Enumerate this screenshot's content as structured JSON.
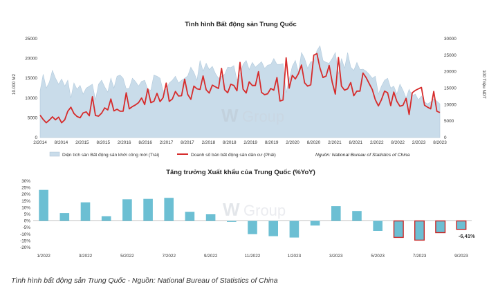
{
  "chart_data": [
    {
      "type": "area+line",
      "title": "Tình hình Bất động sản Trung Quốc",
      "ylabel_left": "10.000 M2",
      "ylabel_right": "100 Triệu NDT",
      "ylim_left": [
        0,
        25000
      ],
      "ylim_right": [
        0,
        30000
      ],
      "y_ticks_left": [
        "0",
        "5000",
        "10000",
        "15000",
        "20000",
        "25000"
      ],
      "y_ticks_right": [
        "0",
        "5000",
        "10000",
        "15000",
        "20000",
        "25000",
        "30000"
      ],
      "x_ticks": [
        "2/2014",
        "8/2014",
        "2/2015",
        "8/2015",
        "2/2016",
        "8/2016",
        "2/2017",
        "8/2017",
        "2/2018",
        "8/2018",
        "2/2019",
        "8/2019",
        "2/2020",
        "8/2020",
        "2/2021",
        "8/2021",
        "2/2022",
        "8/2022",
        "2/2023",
        "8/2023"
      ],
      "series": [
        {
          "name": "Diện tích sàn Bất động sản khởi công mới (Trái)",
          "axis": "left",
          "color": "#c9dcea",
          "values": [
            11800,
            16000,
            12500,
            14000,
            17000,
            15000,
            13500,
            14800,
            13000,
            14500,
            10000,
            13800,
            12200,
            13200,
            11000,
            12500,
            13000,
            13500,
            9500,
            13500,
            14500,
            12800,
            11500,
            15000,
            12500,
            15500,
            15800,
            15000,
            12300,
            12500,
            15000,
            14200,
            13000,
            14200,
            14500,
            12200,
            12000,
            15800,
            15500,
            15000,
            11800,
            12200,
            13800,
            14500,
            15500,
            13800,
            14500,
            15000,
            15600,
            17800,
            16500,
            14500,
            19500,
            16800,
            18800,
            17200,
            18000,
            16200,
            15000,
            15500,
            16000,
            17800,
            17700,
            18200,
            14500,
            16000,
            18500,
            19500,
            17200,
            19000,
            17800,
            18500,
            19200,
            17500,
            18300,
            18500,
            20000,
            18500,
            18500,
            18700,
            11300,
            14800,
            18000,
            19500,
            16500,
            21500,
            20000,
            17500,
            19200,
            19200,
            22000,
            23200,
            19500,
            19000,
            18800,
            20000,
            21500,
            16000,
            20000,
            17500,
            21500,
            17800,
            17000,
            19000,
            17200,
            17300,
            16800,
            16000,
            15000,
            15500,
            11000,
            13000,
            14500,
            15000,
            12500,
            13000,
            11000,
            13500,
            12000,
            10000,
            12200,
            10500,
            11000,
            9500,
            10500,
            9000,
            8500,
            9000,
            9800,
            9200,
            8500
          ]
        },
        {
          "name": "Doanh số bán bất động sản dân cư (Phải)",
          "axis": "right",
          "color": "#d62b2b",
          "values": [
            6800,
            5500,
            4500,
            5300,
            6300,
            5400,
            6200,
            4500,
            5400,
            8000,
            9200,
            7300,
            6400,
            6000,
            7500,
            7800,
            6600,
            12400,
            6700,
            6500,
            7400,
            9000,
            8400,
            11700,
            8100,
            8600,
            8000,
            8000,
            13600,
            8700,
            9400,
            9900,
            10600,
            12000,
            10000,
            14800,
            10600,
            11000,
            13400,
            10900,
            12100,
            16500,
            11000,
            11700,
            14000,
            12600,
            12700,
            17700,
            13100,
            11600,
            15600,
            14800,
            14600,
            18700,
            14500,
            13500,
            15900,
            15400,
            14900,
            21000,
            14500,
            13600,
            16200,
            15800,
            14200,
            22800,
            14700,
            13500,
            16900,
            15800,
            15800,
            20000,
            13700,
            13000,
            13300,
            14900,
            14400,
            18200,
            11100,
            11400,
            24200,
            15000,
            18900,
            17800,
            19400,
            22000,
            16600,
            15600,
            16000,
            25000,
            25500,
            21100,
            18200,
            18700,
            21900,
            16700,
            13200,
            24300,
            15600,
            14400,
            14800,
            16700,
            12700,
            14100,
            14100,
            19600,
            18200,
            16400,
            14600,
            11500,
            9600,
            11500,
            14100,
            13600,
            9700,
            13800,
            11000,
            9500,
            9800,
            11900,
            7000,
            13600,
            14300,
            14800,
            15200,
            9800,
            9200,
            8700,
            14000,
            8000,
            7600
          ]
        }
      ],
      "legend_left": "Diện tích sàn Bất động sản khởi công mới (Trái)",
      "legend_right": "Doanh số bán bất động sản dân cư (Phải)",
      "source": "Nguồn: National Bureau of Statistics of China"
    },
    {
      "type": "bar",
      "title": "Tăng trưởng Xuất khẩu của Trung Quốc (%YoY)",
      "categories": [
        "1/2022",
        "2/2022",
        "3/2022",
        "4/2022",
        "5/2022",
        "6/2022",
        "7/2022",
        "8/2022",
        "9/2022",
        "10/2022",
        "11/2022",
        "12/2022",
        "1/2023",
        "2/2023",
        "3/2023",
        "4/2023",
        "5/2023",
        "6/2023",
        "7/2023",
        "8/2023",
        "9/2023"
      ],
      "x_tick_labels": [
        "1/2022",
        "3/2022",
        "5/2022",
        "7/2022",
        "9/2022",
        "11/2022",
        "1/2023",
        "3/2023",
        "5/2023",
        "7/2023",
        "9/2023"
      ],
      "values": [
        23.4,
        6.0,
        14.0,
        3.5,
        16.3,
        16.6,
        17.4,
        6.8,
        5.0,
        -0.7,
        -10.0,
        -11.5,
        -12.5,
        -3.5,
        11.2,
        7.5,
        -7.5,
        -12.4,
        -14.5,
        -8.8,
        -6.41
      ],
      "highlighted": [
        false,
        false,
        false,
        false,
        false,
        false,
        false,
        false,
        false,
        false,
        false,
        false,
        false,
        false,
        false,
        false,
        false,
        true,
        true,
        true,
        true
      ],
      "ylim": [
        -20,
        30
      ],
      "y_ticks": [
        "-20%",
        "-15%",
        "-10%",
        "-5%",
        "0%",
        "5%",
        "10%",
        "15%",
        "20%",
        "25%",
        "30%"
      ],
      "annotation": "-6,41%",
      "bar_color": "#6cbfd3",
      "highlight_color": "#c62828"
    }
  ],
  "watermark": {
    "text": "Group",
    "logo": "W"
  },
  "caption": "Tình hình bất động sản Trung Quốc - Nguồn: National Bureau of Statistics of China"
}
